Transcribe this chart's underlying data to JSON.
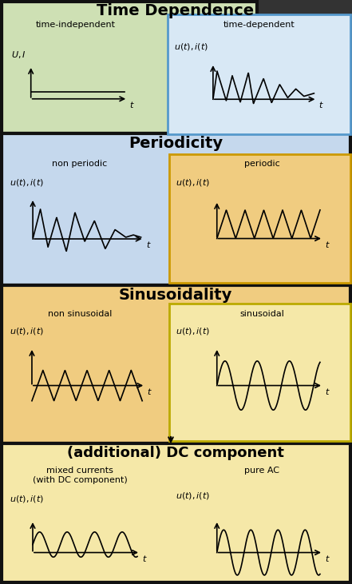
{
  "title_time": "Time Dependence",
  "title_periodicity": "Periodicity",
  "title_sinusoidality": "Sinusoidality",
  "title_dc": "(additional) DC component",
  "label_time_indep": "time-independent",
  "label_time_dep": "time-dependent",
  "label_non_periodic": "non periodic",
  "label_periodic": "periodic",
  "label_non_sinusoidal": "non sinusoidal",
  "label_sinusoidal": "sinusoidal",
  "label_mixed": "mixed currents\n(with DC component)",
  "label_pure_ac": "pure AC",
  "bg_green": "#cee0b4",
  "bg_blue_light": "#c5d8ed",
  "bg_blue_box": "#d8e8f5",
  "bg_orange": "#f0cc80",
  "bg_yellow_light": "#f5e8a8",
  "border_black": "#111111",
  "border_blue": "#5599cc",
  "border_orange": "#cc9900",
  "border_yellow": "#bbaa00",
  "fig_bg": "#333333",
  "fig_width": 4.41,
  "fig_height": 7.31,
  "dpi": 100
}
